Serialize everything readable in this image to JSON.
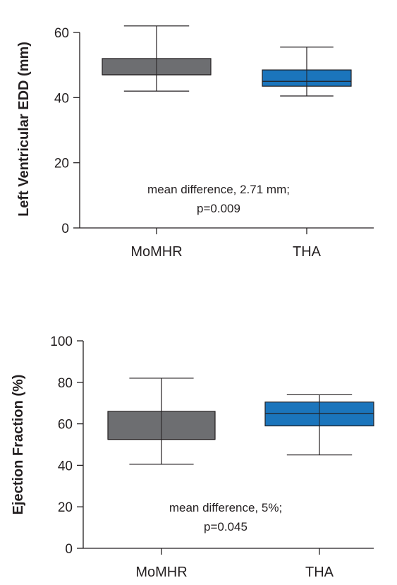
{
  "chart_data": [
    {
      "type": "box",
      "ylabel": "Left Ventricular EDD (mm)",
      "ylim": [
        0,
        60
      ],
      "yticks": [
        0,
        20,
        40,
        60
      ],
      "categories": [
        "MoMHR",
        "THA"
      ],
      "boxes": [
        {
          "category": "MoMHR",
          "min": 42,
          "q1": 47,
          "median": 47,
          "q3": 52,
          "max": 62,
          "color": "#6d6e71"
        },
        {
          "category": "THA",
          "min": 40.5,
          "q1": 43.5,
          "median": 45,
          "q3": 48.5,
          "max": 55.5,
          "color": "#1b75bc"
        }
      ],
      "annotation": [
        "mean difference, 2.71 mm;",
        "p=0.009"
      ],
      "grid": false
    },
    {
      "type": "box",
      "ylabel": "Ejection Fraction (%)",
      "ylim": [
        0,
        100
      ],
      "yticks": [
        0,
        20,
        40,
        60,
        80,
        100
      ],
      "categories": [
        "MoMHR",
        "THA"
      ],
      "boxes": [
        {
          "category": "MoMHR",
          "min": 40.5,
          "q1": 52.5,
          "median": 52.5,
          "q3": 66,
          "max": 82,
          "color": "#6d6e71"
        },
        {
          "category": "THA",
          "min": 45,
          "q1": 59,
          "median": 65,
          "q3": 70.5,
          "max": 74,
          "color": "#1b75bc"
        }
      ],
      "annotation": [
        "mean difference, 5%;",
        "p=0.045"
      ],
      "grid": false
    }
  ]
}
